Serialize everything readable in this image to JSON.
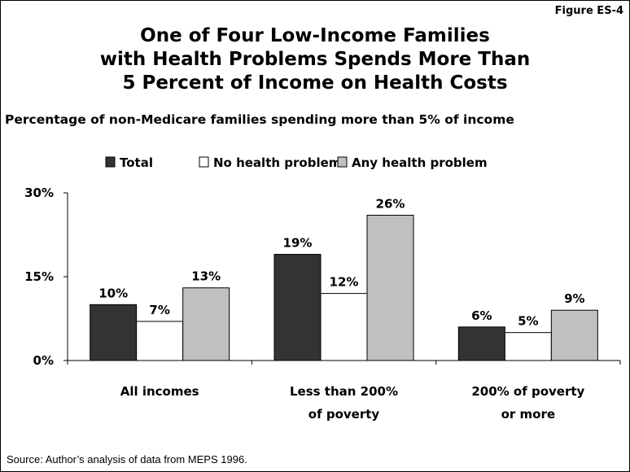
{
  "figure_label": "Figure ES-4",
  "title_lines": [
    "One of Four Low-Income Families",
    "with Health Problems Spends More Than",
    "5 Percent of Income on Health Costs"
  ],
  "subtitle": "Percentage of non-Medicare families spending more than 5% of income",
  "source": "Source: Author’s analysis of data from MEPS 1996.",
  "chart_data": {
    "type": "bar",
    "title": "One of Four Low-Income Families with Health Problems Spends More Than 5 Percent of Income on Health Costs",
    "subtitle": "Percentage of non-Medicare families spending more than 5% of income",
    "categories": [
      [
        "All incomes"
      ],
      [
        "Less than 200%",
        "of poverty"
      ],
      [
        "200% of poverty",
        "or more"
      ]
    ],
    "series": [
      {
        "name": "Total",
        "values": [
          10,
          19,
          6
        ],
        "color": "#333333"
      },
      {
        "name": "No health problem",
        "values": [
          7,
          12,
          5
        ],
        "color": "#ffffff"
      },
      {
        "name": "Any health problem",
        "values": [
          13,
          26,
          9
        ],
        "color": "#c0c0c0"
      }
    ],
    "data_labels": [
      [
        "10%",
        "19%",
        "6%"
      ],
      [
        "7%",
        "12%",
        "5%"
      ],
      [
        "13%",
        "26%",
        "9%"
      ]
    ],
    "y_ticks": [
      "0%",
      "15%",
      "30%"
    ],
    "ylim": [
      0,
      30
    ],
    "legend_position": "top",
    "grid": false,
    "xlabel": "",
    "ylabel": ""
  }
}
